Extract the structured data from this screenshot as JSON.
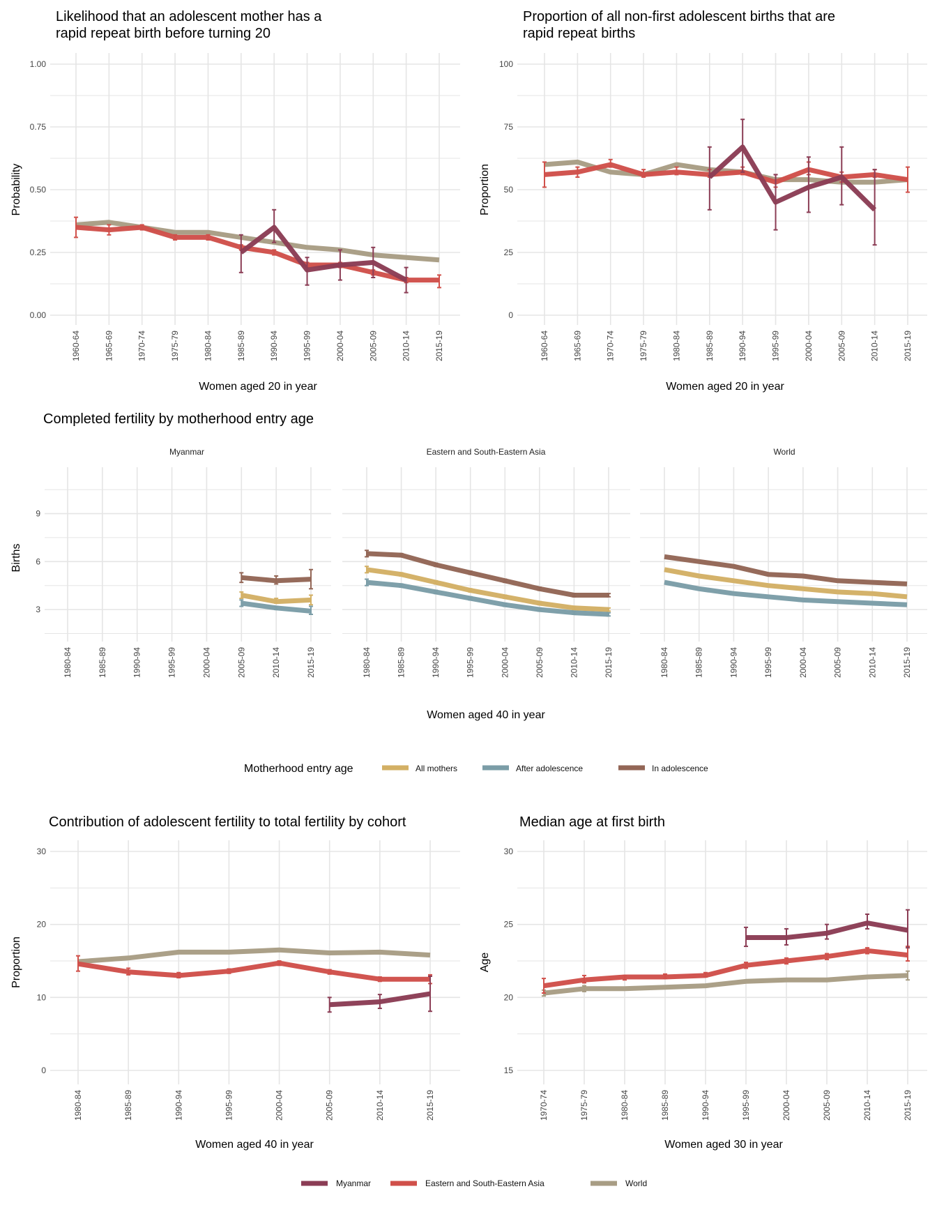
{
  "colors": {
    "myanmar": "#8B3D55",
    "region": "#D0504A",
    "world": "#A89D84",
    "all_mothers": "#D3B065",
    "after_adolescence": "#7B9DA7",
    "in_adolescence": "#936656",
    "grid": "#e5e5e5"
  },
  "chart_data": [
    {
      "id": "rapid-repeat-likelihood",
      "type": "line",
      "title": "Likelihood that an adolescent mother has a rapid repeat birth before turning 20",
      "title_lines": [
        "Likelihood that an adolescent mother has a",
        "rapid repeat birth before turning 20"
      ],
      "xlabel": "Women aged 20 in year",
      "ylabel": "Probability",
      "ylim": [
        0,
        1
      ],
      "yticks": [
        "0.00",
        "0.25",
        "0.50",
        "0.75",
        "1.00"
      ],
      "ytick_values": [
        0,
        0.25,
        0.5,
        0.75,
        1.0
      ],
      "categories": [
        "1960-64",
        "1965-69",
        "1970-74",
        "1975-79",
        "1980-84",
        "1985-89",
        "1990-94",
        "1995-99",
        "2000-04",
        "2005-09",
        "2010-14",
        "2015-19"
      ],
      "series": [
        {
          "name": "World",
          "key": "world",
          "values": [
            0.36,
            0.37,
            0.35,
            0.33,
            0.33,
            0.31,
            0.29,
            0.27,
            0.26,
            0.24,
            0.23,
            0.22
          ],
          "lo": null,
          "hi": null
        },
        {
          "name": "Eastern and South-Eastern Asia",
          "key": "region",
          "values": [
            0.35,
            0.34,
            0.35,
            0.31,
            0.31,
            0.27,
            0.25,
            0.2,
            0.2,
            0.17,
            0.14,
            0.14
          ],
          "lo": [
            0.31,
            0.32,
            0.34,
            0.3,
            0.3,
            0.26,
            0.24,
            0.19,
            0.19,
            0.16,
            0.13,
            0.11
          ],
          "hi": [
            0.39,
            0.36,
            0.36,
            0.32,
            0.32,
            0.28,
            0.26,
            0.21,
            0.21,
            0.18,
            0.15,
            0.16
          ]
        },
        {
          "name": "Myanmar",
          "key": "myanmar",
          "values": [
            null,
            null,
            null,
            null,
            null,
            0.25,
            0.35,
            0.18,
            0.2,
            0.21,
            0.14,
            null
          ],
          "lo": [
            null,
            null,
            null,
            null,
            null,
            0.17,
            0.29,
            0.12,
            0.14,
            0.15,
            0.09,
            null
          ],
          "hi": [
            null,
            null,
            null,
            null,
            null,
            0.32,
            0.42,
            0.23,
            0.26,
            0.27,
            0.19,
            null
          ]
        }
      ]
    },
    {
      "id": "rapid-repeat-proportion",
      "type": "line",
      "title": "Proportion of all non-first adolescent births that are rapid repeat births",
      "title_lines": [
        "Proportion of all non-first adolescent births that are",
        "rapid repeat births"
      ],
      "xlabel": "Women aged 20 in year",
      "ylabel": "Proportion",
      "ylim": [
        0,
        100
      ],
      "yticks": [
        "0",
        "25",
        "50",
        "75",
        "100"
      ],
      "ytick_values": [
        0,
        25,
        50,
        75,
        100
      ],
      "categories": [
        "1960-64",
        "1965-69",
        "1970-74",
        "1975-79",
        "1980-84",
        "1985-89",
        "1990-94",
        "1995-99",
        "2000-04",
        "2005-09",
        "2010-14",
        "2015-19"
      ],
      "series": [
        {
          "name": "World",
          "key": "world",
          "values": [
            60,
            61,
            57,
            56,
            60,
            58,
            57,
            54,
            54,
            53,
            53,
            54
          ],
          "lo": null,
          "hi": null
        },
        {
          "name": "Eastern and South-Eastern Asia",
          "key": "region",
          "values": [
            56,
            57,
            60,
            56,
            57,
            56,
            57,
            53,
            58,
            55,
            56,
            54
          ],
          "lo": [
            51,
            55,
            59,
            55,
            56,
            55,
            56,
            51,
            56,
            53,
            55,
            49
          ],
          "hi": [
            61,
            59,
            62,
            58,
            59,
            58,
            59,
            56,
            61,
            57,
            58,
            59
          ]
        },
        {
          "name": "Myanmar",
          "key": "myanmar",
          "values": [
            null,
            null,
            null,
            null,
            null,
            55,
            67,
            45,
            51,
            55,
            42,
            null
          ],
          "lo": [
            null,
            null,
            null,
            null,
            null,
            42,
            57,
            34,
            41,
            44,
            28,
            null
          ],
          "hi": [
            null,
            null,
            null,
            null,
            null,
            67,
            78,
            56,
            63,
            67,
            58,
            null
          ]
        }
      ]
    },
    {
      "id": "completed-fertility",
      "type": "line",
      "title": "Completed fertility by motherhood entry age",
      "xlabel": "Women aged 40 in year",
      "ylabel": "Births",
      "ylim": [
        1,
        12
      ],
      "yticks": [
        "3",
        "6",
        "9"
      ],
      "ytick_values": [
        3,
        6,
        9
      ],
      "categories": [
        "1980-84",
        "1985-89",
        "1990-94",
        "1995-99",
        "2000-04",
        "2005-09",
        "2010-14",
        "2015-19"
      ],
      "legend_title": "Motherhood entry age",
      "legend": [
        {
          "name": "All mothers",
          "key": "all_mothers"
        },
        {
          "name": "After adolescence",
          "key": "after_adolescence"
        },
        {
          "name": "In adolescence",
          "key": "in_adolescence"
        }
      ],
      "facets": [
        {
          "name": "Myanmar",
          "series": [
            {
              "key": "in_adolescence",
              "values": [
                null,
                null,
                null,
                null,
                null,
                5.0,
                4.8,
                4.9
              ],
              "lo": [
                null,
                null,
                null,
                null,
                null,
                4.7,
                4.6,
                4.3
              ],
              "hi": [
                null,
                null,
                null,
                null,
                null,
                5.3,
                5.1,
                5.5
              ]
            },
            {
              "key": "all_mothers",
              "values": [
                null,
                null,
                null,
                null,
                null,
                3.9,
                3.5,
                3.6
              ],
              "lo": [
                null,
                null,
                null,
                null,
                null,
                3.7,
                3.4,
                3.3
              ],
              "hi": [
                null,
                null,
                null,
                null,
                null,
                4.1,
                3.7,
                3.9
              ]
            },
            {
              "key": "after_adolescence",
              "values": [
                null,
                null,
                null,
                null,
                null,
                3.4,
                3.1,
                2.9
              ],
              "lo": [
                null,
                null,
                null,
                null,
                null,
                3.2,
                3.0,
                2.7
              ],
              "hi": [
                null,
                null,
                null,
                null,
                null,
                3.6,
                3.2,
                3.2
              ]
            }
          ]
        },
        {
          "name": "Eastern and South-Eastern Asia",
          "series": [
            {
              "key": "in_adolescence",
              "values": [
                6.5,
                6.4,
                5.8,
                5.3,
                4.8,
                4.3,
                3.9,
                3.9
              ],
              "lo": [
                6.3,
                6.3,
                5.7,
                5.2,
                4.7,
                4.2,
                3.8,
                3.8
              ],
              "hi": [
                6.7,
                6.5,
                5.9,
                5.4,
                4.9,
                4.4,
                4.0,
                4.0
              ]
            },
            {
              "key": "all_mothers",
              "values": [
                5.5,
                5.2,
                4.7,
                4.2,
                3.8,
                3.4,
                3.1,
                3.0
              ],
              "lo": [
                5.3,
                5.1,
                4.6,
                4.1,
                3.7,
                3.3,
                3.0,
                2.9
              ],
              "hi": [
                5.7,
                5.3,
                4.8,
                4.3,
                3.9,
                3.5,
                3.2,
                3.1
              ]
            },
            {
              "key": "after_adolescence",
              "values": [
                4.7,
                4.5,
                4.1,
                3.7,
                3.3,
                3.0,
                2.8,
                2.7
              ],
              "lo": [
                4.5,
                4.4,
                4.0,
                3.6,
                3.2,
                2.9,
                2.7,
                2.6
              ],
              "hi": [
                4.9,
                4.6,
                4.2,
                3.8,
                3.4,
                3.1,
                2.9,
                2.8
              ]
            }
          ]
        },
        {
          "name": "World",
          "series": [
            {
              "key": "in_adolescence",
              "values": [
                6.3,
                6.0,
                5.7,
                5.2,
                5.1,
                4.8,
                4.7,
                4.6
              ],
              "lo": null,
              "hi": null
            },
            {
              "key": "all_mothers",
              "values": [
                5.5,
                5.1,
                4.8,
                4.5,
                4.3,
                4.1,
                4.0,
                3.8
              ],
              "lo": null,
              "hi": null
            },
            {
              "key": "after_adolescence",
              "values": [
                4.7,
                4.3,
                4.0,
                3.8,
                3.6,
                3.5,
                3.4,
                3.3
              ],
              "lo": null,
              "hi": null
            }
          ]
        }
      ]
    },
    {
      "id": "adolescent-contribution",
      "type": "line",
      "title": "Contribution of adolescent fertility to total fertility by cohort",
      "xlabel": "Women aged 40 in year",
      "ylabel": "Proportion",
      "ylim": [
        0,
        30
      ],
      "yticks": [
        "0",
        "10",
        "20",
        "30"
      ],
      "ytick_values": [
        0,
        10,
        20,
        30
      ],
      "categories": [
        "1980-84",
        "1985-89",
        "1990-94",
        "1995-99",
        "2000-04",
        "2005-09",
        "2010-14",
        "2015-19"
      ],
      "series": [
        {
          "name": "World",
          "key": "world",
          "values": [
            14.9,
            15.4,
            16.2,
            16.2,
            16.5,
            16.1,
            16.2,
            15.8
          ],
          "lo": null,
          "hi": null
        },
        {
          "name": "Eastern and South-Eastern Asia",
          "key": "region",
          "values": [
            14.6,
            13.5,
            13.0,
            13.6,
            14.7,
            13.5,
            12.5,
            12.5
          ],
          "lo": [
            13.6,
            13.1,
            12.7,
            13.3,
            14.4,
            13.2,
            12.2,
            11.9
          ],
          "hi": [
            15.7,
            14.0,
            13.4,
            13.9,
            15.0,
            13.8,
            12.8,
            13.1
          ]
        },
        {
          "name": "Myanmar",
          "key": "myanmar",
          "values": [
            null,
            null,
            null,
            null,
            null,
            9.0,
            9.4,
            10.5
          ],
          "lo": [
            null,
            null,
            null,
            null,
            null,
            8.0,
            8.5,
            8.1
          ],
          "hi": [
            null,
            null,
            null,
            null,
            null,
            10.0,
            10.4,
            12.9
          ]
        }
      ]
    },
    {
      "id": "median-age-first-birth",
      "type": "line",
      "title": "Median age at first birth",
      "xlabel": "Women aged 30 in year",
      "ylabel": "Age",
      "ylim": [
        15,
        30
      ],
      "yticks": [
        "15",
        "20",
        "25",
        "30"
      ],
      "ytick_values": [
        15,
        20,
        25,
        30
      ],
      "categories": [
        "1970-74",
        "1975-79",
        "1980-84",
        "1985-89",
        "1990-94",
        "1995-99",
        "2000-04",
        "2005-09",
        "2010-14",
        "2015-19"
      ],
      "series": [
        {
          "name": "World",
          "key": "world",
          "values": [
            20.3,
            20.6,
            20.6,
            20.7,
            20.8,
            21.1,
            21.2,
            21.2,
            21.4,
            21.5
          ],
          "lo": [
            20.1,
            20.4,
            null,
            null,
            null,
            null,
            null,
            null,
            null,
            21.2
          ],
          "hi": [
            20.5,
            20.8,
            null,
            null,
            null,
            null,
            null,
            null,
            null,
            21.8
          ]
        },
        {
          "name": "Eastern and South-Eastern Asia",
          "key": "region",
          "values": [
            20.8,
            21.2,
            21.4,
            21.4,
            21.5,
            22.2,
            22.5,
            22.8,
            23.2,
            22.9
          ],
          "lo": [
            20.3,
            21.0,
            21.2,
            21.3,
            21.4,
            22.0,
            22.3,
            22.6,
            23.0,
            22.5
          ],
          "hi": [
            21.3,
            21.5,
            21.5,
            21.6,
            21.7,
            22.4,
            22.7,
            23.0,
            23.4,
            23.5
          ]
        },
        {
          "name": "Myanmar",
          "key": "myanmar",
          "values": [
            null,
            null,
            null,
            null,
            null,
            24.1,
            24.1,
            24.4,
            25.1,
            24.6
          ],
          "lo": [
            null,
            null,
            null,
            null,
            null,
            23.5,
            23.6,
            24.0,
            24.7,
            23.4
          ],
          "hi": [
            null,
            null,
            null,
            null,
            null,
            24.8,
            24.7,
            25.0,
            25.7,
            26.0
          ]
        }
      ]
    }
  ],
  "bottom_legend": [
    {
      "name": "Myanmar",
      "key": "myanmar"
    },
    {
      "name": "Eastern and South-Eastern Asia",
      "key": "region"
    },
    {
      "name": "World",
      "key": "world"
    }
  ]
}
